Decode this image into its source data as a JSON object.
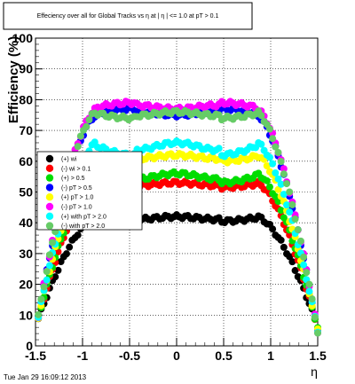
{
  "chart_data": {
    "type": "scatter",
    "title": "Effeciency over all for Global Tracks vs    η at |  η | <= 1.0 at pT > 0.1",
    "xlabel": "η",
    "ylabel": "Efficiency (%)",
    "xlim": [
      -1.5,
      1.5
    ],
    "ylim": [
      0,
      100
    ],
    "xticks": [
      "-1.5",
      "-1",
      "-0.5",
      "0",
      "0.5",
      "1",
      "1.5"
    ],
    "yticks": [
      "0",
      "10",
      "20",
      "30",
      "40",
      "50",
      "60",
      "70",
      "80",
      "90",
      "100"
    ],
    "grid": true,
    "legend_position": "left-middle",
    "timestamp": "Tue Jan 29 16:09:12 2013",
    "series": [
      {
        "name": "(+) wi",
        "color": "#000000",
        "plateau": 42,
        "dip": 1.5
      },
      {
        "name": "(-) wi      > 0.1",
        "color": "#ff0000",
        "plateau": 53,
        "dip": 1.5
      },
      {
        "name": "(+)          > 0.5",
        "color": "#00dd00",
        "plateau": 56,
        "dip": 3
      },
      {
        "name": "(-)        pT > 0.5",
        "color": "#0000ff",
        "plateau": 75,
        "dip": -2
      },
      {
        "name": "(+)        pT > 1.0",
        "color": "#ffff00",
        "plateau": 62,
        "dip": 2
      },
      {
        "name": "(-)         pT > 1.0",
        "color": "#ff00ff",
        "plateau": 77,
        "dip": -2
      },
      {
        "name": "(+) with pT > 2.0",
        "color": "#00ffff",
        "plateau": 66,
        "dip": 4
      },
      {
        "name": "(-) with pT > 2.0",
        "color": "#66cc66",
        "plateau": 76,
        "dip": 2
      }
    ]
  }
}
